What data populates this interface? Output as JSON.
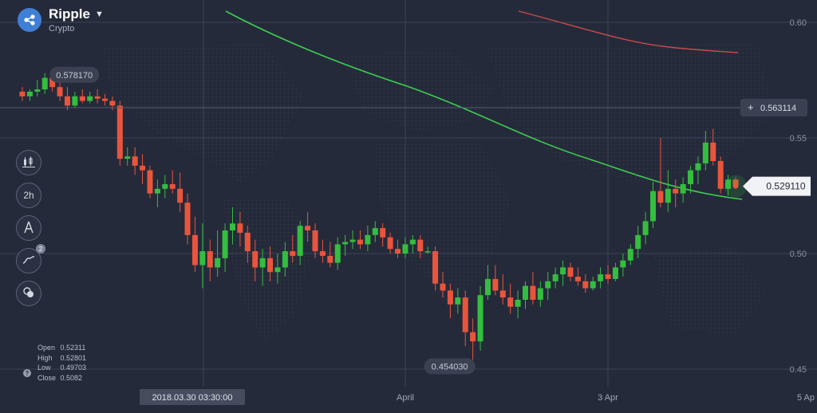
{
  "asset": {
    "name": "Ripple",
    "category": "Crypto"
  },
  "toolbar": {
    "timeframe_label": "2h",
    "indicators_badge": "2"
  },
  "chart_data": {
    "type": "candlestick",
    "ylim": [
      0.45,
      0.6
    ],
    "y_ticks": [
      "0.60",
      "0.55",
      "0.50",
      "0.45"
    ],
    "x_labels": [
      "2018.03.30 03:30:00",
      "April",
      "3 Apr",
      "5 Ap"
    ],
    "max_label": "0.578170",
    "min_label": "0.454030",
    "current_price": "0.529110",
    "crosshair_price": "0.563114",
    "ohlc": {
      "open": "0.52311",
      "high": "0.52801",
      "low": "0.49703",
      "close": "0.5082"
    },
    "ohlc_labels": {
      "open": "Open",
      "high": "High",
      "low": "Low",
      "close": "Close"
    },
    "candles": [
      [
        0.57,
        0.572,
        0.566,
        0.568
      ],
      [
        0.568,
        0.571,
        0.566,
        0.57
      ],
      [
        0.57,
        0.575,
        0.568,
        0.571
      ],
      [
        0.571,
        0.578,
        0.569,
        0.576
      ],
      [
        0.576,
        0.578,
        0.57,
        0.572
      ],
      [
        0.572,
        0.574,
        0.566,
        0.568
      ],
      [
        0.568,
        0.572,
        0.562,
        0.564
      ],
      [
        0.564,
        0.57,
        0.563,
        0.568
      ],
      [
        0.568,
        0.571,
        0.565,
        0.566
      ],
      [
        0.566,
        0.57,
        0.565,
        0.568
      ],
      [
        0.568,
        0.571,
        0.565,
        0.567
      ],
      [
        0.567,
        0.569,
        0.564,
        0.566
      ],
      [
        0.566,
        0.568,
        0.562,
        0.564
      ],
      [
        0.564,
        0.566,
        0.538,
        0.541
      ],
      [
        0.541,
        0.546,
        0.538,
        0.542
      ],
      [
        0.542,
        0.546,
        0.534,
        0.538
      ],
      [
        0.538,
        0.543,
        0.53,
        0.536
      ],
      [
        0.536,
        0.538,
        0.524,
        0.526
      ],
      [
        0.526,
        0.532,
        0.52,
        0.528
      ],
      [
        0.528,
        0.534,
        0.524,
        0.53
      ],
      [
        0.53,
        0.536,
        0.526,
        0.528
      ],
      [
        0.528,
        0.535,
        0.518,
        0.522
      ],
      [
        0.522,
        0.526,
        0.504,
        0.508
      ],
      [
        0.508,
        0.516,
        0.492,
        0.495
      ],
      [
        0.495,
        0.513,
        0.485,
        0.501
      ],
      [
        0.501,
        0.506,
        0.488,
        0.494
      ],
      [
        0.494,
        0.51,
        0.49,
        0.498
      ],
      [
        0.498,
        0.513,
        0.492,
        0.51
      ],
      [
        0.51,
        0.52,
        0.504,
        0.513
      ],
      [
        0.513,
        0.518,
        0.503,
        0.509
      ],
      [
        0.509,
        0.512,
        0.496,
        0.501
      ],
      [
        0.501,
        0.506,
        0.488,
        0.494
      ],
      [
        0.494,
        0.502,
        0.486,
        0.498
      ],
      [
        0.498,
        0.503,
        0.488,
        0.492
      ],
      [
        0.492,
        0.5,
        0.487,
        0.494
      ],
      [
        0.494,
        0.505,
        0.49,
        0.501
      ],
      [
        0.501,
        0.508,
        0.496,
        0.499
      ],
      [
        0.499,
        0.514,
        0.495,
        0.512
      ],
      [
        0.512,
        0.518,
        0.505,
        0.51
      ],
      [
        0.51,
        0.513,
        0.498,
        0.501
      ],
      [
        0.501,
        0.506,
        0.496,
        0.499
      ],
      [
        0.499,
        0.505,
        0.494,
        0.496
      ],
      [
        0.496,
        0.507,
        0.493,
        0.504
      ],
      [
        0.504,
        0.508,
        0.499,
        0.505
      ],
      [
        0.505,
        0.51,
        0.502,
        0.506
      ],
      [
        0.506,
        0.51,
        0.502,
        0.504
      ],
      [
        0.504,
        0.512,
        0.501,
        0.508
      ],
      [
        0.508,
        0.514,
        0.505,
        0.511
      ],
      [
        0.511,
        0.513,
        0.503,
        0.507
      ],
      [
        0.507,
        0.509,
        0.5,
        0.502
      ],
      [
        0.502,
        0.506,
        0.498,
        0.5
      ],
      [
        0.5,
        0.507,
        0.498,
        0.504
      ],
      [
        0.504,
        0.508,
        0.5,
        0.506
      ],
      [
        0.506,
        0.508,
        0.498,
        0.501
      ],
      [
        0.501,
        0.503,
        0.5,
        0.501
      ],
      [
        0.501,
        0.503,
        0.484,
        0.487
      ],
      [
        0.487,
        0.492,
        0.481,
        0.484
      ],
      [
        0.484,
        0.487,
        0.472,
        0.478
      ],
      [
        0.478,
        0.485,
        0.474,
        0.481
      ],
      [
        0.481,
        0.484,
        0.46,
        0.466
      ],
      [
        0.466,
        0.472,
        0.454,
        0.462
      ],
      [
        0.462,
        0.486,
        0.458,
        0.482
      ],
      [
        0.482,
        0.495,
        0.48,
        0.489
      ],
      [
        0.489,
        0.495,
        0.482,
        0.484
      ],
      [
        0.484,
        0.491,
        0.478,
        0.481
      ],
      [
        0.481,
        0.487,
        0.474,
        0.477
      ],
      [
        0.477,
        0.484,
        0.472,
        0.48
      ],
      [
        0.48,
        0.488,
        0.476,
        0.486
      ],
      [
        0.486,
        0.492,
        0.478,
        0.48
      ],
      [
        0.48,
        0.488,
        0.477,
        0.485
      ],
      [
        0.485,
        0.492,
        0.48,
        0.488
      ],
      [
        0.488,
        0.494,
        0.485,
        0.491
      ],
      [
        0.491,
        0.497,
        0.486,
        0.494
      ],
      [
        0.494,
        0.496,
        0.488,
        0.49
      ],
      [
        0.49,
        0.494,
        0.486,
        0.488
      ],
      [
        0.488,
        0.491,
        0.483,
        0.485
      ],
      [
        0.485,
        0.49,
        0.484,
        0.488
      ],
      [
        0.488,
        0.494,
        0.485,
        0.491
      ],
      [
        0.491,
        0.495,
        0.487,
        0.489
      ],
      [
        0.489,
        0.496,
        0.488,
        0.494
      ],
      [
        0.494,
        0.5,
        0.49,
        0.497
      ],
      [
        0.497,
        0.504,
        0.495,
        0.502
      ],
      [
        0.502,
        0.512,
        0.498,
        0.508
      ],
      [
        0.508,
        0.518,
        0.504,
        0.514
      ],
      [
        0.514,
        0.531,
        0.511,
        0.527
      ],
      [
        0.527,
        0.55,
        0.52,
        0.522
      ],
      [
        0.522,
        0.536,
        0.518,
        0.528
      ],
      [
        0.528,
        0.532,
        0.52,
        0.526
      ],
      [
        0.526,
        0.533,
        0.522,
        0.53
      ],
      [
        0.53,
        0.538,
        0.526,
        0.536
      ],
      [
        0.536,
        0.542,
        0.53,
        0.539
      ],
      [
        0.539,
        0.553,
        0.536,
        0.548
      ],
      [
        0.548,
        0.554,
        0.538,
        0.54
      ],
      [
        0.54,
        0.542,
        0.526,
        0.528
      ],
      [
        0.528,
        0.534,
        0.525,
        0.532
      ],
      [
        0.532,
        0.533,
        0.528,
        0.529
      ]
    ]
  }
}
